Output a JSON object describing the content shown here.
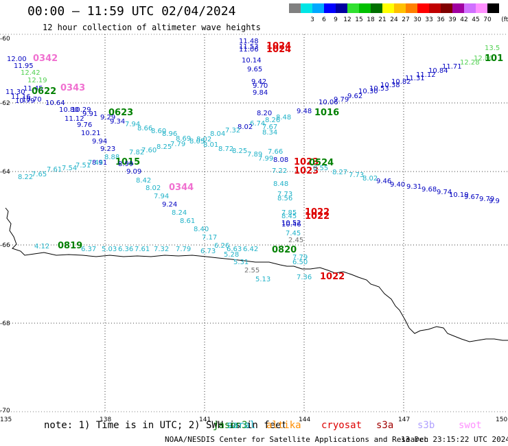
{
  "title": "00:00 – 11:59 UTC 02/04/2024",
  "subtitle": "12 hour collection of altimeter wave heights",
  "legend": {
    "unit": "(ft)",
    "bins": [
      {
        "color": "#808080",
        "label": ""
      },
      {
        "color": "#00e5e5",
        "label": "3"
      },
      {
        "color": "#00a8ff",
        "label": "6"
      },
      {
        "color": "#0000ff",
        "label": "9"
      },
      {
        "color": "#0000a0",
        "label": "12"
      },
      {
        "color": "#30e030",
        "label": "15"
      },
      {
        "color": "#00c000",
        "label": "18"
      },
      {
        "color": "#007000",
        "label": "21"
      },
      {
        "color": "#ffff00",
        "label": "24"
      },
      {
        "color": "#ffc000",
        "label": "27"
      },
      {
        "color": "#ff8000",
        "label": "30"
      },
      {
        "color": "#ff0000",
        "label": "33"
      },
      {
        "color": "#c00000",
        "label": "36"
      },
      {
        "color": "#800000",
        "label": "39"
      },
      {
        "color": "#a000a0",
        "label": "42"
      },
      {
        "color": "#d070ff",
        "label": "45"
      },
      {
        "color": "#ff90ff",
        "label": "70"
      },
      {
        "color": "#000000",
        "label": ""
      }
    ]
  },
  "axes": {
    "lat_labels": [
      "-60",
      "-62",
      "-64",
      "-66",
      "-68",
      "-70"
    ],
    "lon_labels": [
      "135",
      "138",
      "141",
      "144",
      "147",
      "150"
    ]
  },
  "colors": {
    "cyan": "#20b2c8",
    "blue": "#0000c0",
    "green": "#008000",
    "lightgreen": "#50d050",
    "red": "#dd0000",
    "pink": "#f070d0",
    "gray": "#707070",
    "coast": "#000000",
    "grid": "#000000"
  },
  "observations": [
    {
      "t": "12.00",
      "c": "blue"
    },
    {
      "t": "0342",
      "c": "pink"
    },
    {
      "t": "11.95",
      "c": "blue"
    },
    {
      "t": "12.42",
      "c": "lightgreen"
    },
    {
      "t": "12.19",
      "c": "lightgreen"
    },
    {
      "t": "11.45",
      "c": "blue"
    },
    {
      "t": "0343",
      "c": "pink"
    },
    {
      "t": "11.30",
      "c": "blue"
    },
    {
      "t": "0622",
      "c": "green"
    },
    {
      "t": "11.16",
      "c": "blue"
    },
    {
      "t": "10.70",
      "c": "blue"
    },
    {
      "t": "10.79",
      "c": "blue"
    },
    {
      "t": "10.64",
      "c": "blue"
    },
    {
      "t": "10.80",
      "c": "blue"
    },
    {
      "t": "10.29",
      "c": "blue"
    },
    {
      "t": "9.91",
      "c": "blue"
    },
    {
      "t": "0623",
      "c": "green"
    },
    {
      "t": "9.29",
      "c": "blue"
    },
    {
      "t": "11.12",
      "c": "blue"
    },
    {
      "t": "9.34",
      "c": "blue"
    },
    {
      "t": "9.76",
      "c": "blue"
    },
    {
      "t": "7.94",
      "c": "cyan"
    },
    {
      "t": "8.66",
      "c": "cyan"
    },
    {
      "t": "10.21",
      "c": "blue"
    },
    {
      "t": "8.60",
      "c": "cyan"
    },
    {
      "t": "8.96",
      "c": "cyan"
    },
    {
      "t": "9.94",
      "c": "blue"
    },
    {
      "t": "8.69",
      "c": "cyan"
    },
    {
      "t": "8.05",
      "c": "cyan"
    },
    {
      "t": "8.02",
      "c": "cyan"
    },
    {
      "t": "8.25",
      "c": "cyan"
    },
    {
      "t": "7.79",
      "c": "cyan"
    },
    {
      "t": "8.01",
      "c": "cyan"
    },
    {
      "t": "9.23",
      "c": "blue"
    },
    {
      "t": "7.82",
      "c": "cyan"
    },
    {
      "t": "7.60",
      "c": "cyan"
    },
    {
      "t": "8.04",
      "c": "cyan"
    },
    {
      "t": "8.91",
      "c": "blue"
    },
    {
      "t": "8.88",
      "c": "cyan"
    },
    {
      "t": "7.44",
      "c": "cyan"
    },
    {
      "t": "7.51",
      "c": "cyan"
    },
    {
      "t": "7.54",
      "c": "cyan"
    },
    {
      "t": "7.61",
      "c": "cyan"
    },
    {
      "t": "7.65",
      "c": "cyan"
    },
    {
      "t": "8.22",
      "c": "cyan"
    },
    {
      "t": "1015",
      "c": "green"
    },
    {
      "t": "8.99",
      "c": "blue"
    },
    {
      "t": "9.09",
      "c": "blue"
    },
    {
      "t": "8.42",
      "c": "cyan"
    },
    {
      "t": "8.02",
      "c": "cyan"
    },
    {
      "t": "0344",
      "c": "pink"
    },
    {
      "t": "7.94",
      "c": "cyan"
    },
    {
      "t": "9.24",
      "c": "blue"
    },
    {
      "t": "8.24",
      "c": "cyan"
    },
    {
      "t": "8.61",
      "c": "cyan"
    },
    {
      "t": "8.40",
      "c": "cyan"
    },
    {
      "t": "7.17",
      "c": "cyan"
    },
    {
      "t": "6.26",
      "c": "cyan"
    },
    {
      "t": "6.73",
      "c": "cyan"
    },
    {
      "t": "7.79",
      "c": "cyan"
    },
    {
      "t": "5.03",
      "c": "cyan"
    },
    {
      "t": "6.36",
      "c": "cyan"
    },
    {
      "t": "7.61",
      "c": "cyan"
    },
    {
      "t": "7.32",
      "c": "cyan"
    },
    {
      "t": "5.28",
      "c": "cyan"
    },
    {
      "t": "6.63",
      "c": "cyan"
    },
    {
      "t": "6.42",
      "c": "cyan"
    },
    {
      "t": "5.31",
      "c": "cyan"
    },
    {
      "t": "2.55",
      "c": "gray"
    },
    {
      "t": "5.13",
      "c": "cyan"
    },
    {
      "t": "4.12",
      "c": "cyan"
    },
    {
      "t": "0819",
      "c": "green"
    },
    {
      "t": "6.37",
      "c": "cyan"
    },
    {
      "t": "11.48",
      "c": "blue"
    },
    {
      "t": "1024",
      "c": "red"
    },
    {
      "t": "11.53",
      "c": "blue"
    },
    {
      "t": "11.06",
      "c": "blue"
    },
    {
      "t": "1024",
      "c": "red"
    },
    {
      "t": "10.14",
      "c": "blue"
    },
    {
      "t": "9.65",
      "c": "blue"
    },
    {
      "t": "9.42",
      "c": "blue"
    },
    {
      "t": "9.70",
      "c": "blue"
    },
    {
      "t": "9.84",
      "c": "blue"
    },
    {
      "t": "8.20",
      "c": "blue"
    },
    {
      "t": "8.26",
      "c": "cyan"
    },
    {
      "t": "8.48",
      "c": "cyan"
    },
    {
      "t": "9.48",
      "c": "blue"
    },
    {
      "t": "1016",
      "c": "green"
    },
    {
      "t": "6.74",
      "c": "cyan"
    },
    {
      "t": "7.67",
      "c": "cyan"
    },
    {
      "t": "8.02",
      "c": "blue"
    },
    {
      "t": "7.32",
      "c": "cyan"
    },
    {
      "t": "8.34",
      "c": "cyan"
    },
    {
      "t": "8.72",
      "c": "cyan"
    },
    {
      "t": "8.25",
      "c": "cyan"
    },
    {
      "t": "7.89",
      "c": "cyan"
    },
    {
      "t": "7.66",
      "c": "cyan"
    },
    {
      "t": "7.99",
      "c": "cyan"
    },
    {
      "t": "8.08",
      "c": "blue"
    },
    {
      "t": "1023",
      "c": "red"
    },
    {
      "t": "0524",
      "c": "green"
    },
    {
      "t": "7.22",
      "c": "cyan"
    },
    {
      "t": "1023",
      "c": "red"
    },
    {
      "t": "8.55",
      "c": "cyan"
    },
    {
      "t": "8.27",
      "c": "cyan"
    },
    {
      "t": "7.73",
      "c": "cyan"
    },
    {
      "t": "8.02",
      "c": "cyan"
    },
    {
      "t": "8.48",
      "c": "cyan"
    },
    {
      "t": "7.73",
      "c": "cyan"
    },
    {
      "t": "8.56",
      "c": "cyan"
    },
    {
      "t": "7.85",
      "c": "cyan"
    },
    {
      "t": "1022",
      "c": "red"
    },
    {
      "t": "8.45",
      "c": "cyan"
    },
    {
      "t": "1022",
      "c": "red"
    },
    {
      "t": "10.52",
      "c": "blue"
    },
    {
      "t": "10.46",
      "c": "blue"
    },
    {
      "t": "7.45",
      "c": "cyan"
    },
    {
      "t": "2.45",
      "c": "gray"
    },
    {
      "t": "0820",
      "c": "green"
    },
    {
      "t": "7.79",
      "c": "cyan"
    },
    {
      "t": "6.50",
      "c": "cyan"
    },
    {
      "t": "7.36",
      "c": "cyan"
    },
    {
      "t": "1022",
      "c": "red"
    },
    {
      "t": "10.06",
      "c": "blue"
    },
    {
      "t": "9.79",
      "c": "blue"
    },
    {
      "t": "9.62",
      "c": "blue"
    },
    {
      "t": "10.30",
      "c": "blue"
    },
    {
      "t": "10.53",
      "c": "blue"
    },
    {
      "t": "10.38",
      "c": "blue"
    },
    {
      "t": "10.82",
      "c": "blue"
    },
    {
      "t": "11.31",
      "c": "blue"
    },
    {
      "t": "11.12",
      "c": "blue"
    },
    {
      "t": "10.84",
      "c": "blue"
    },
    {
      "t": "11.71",
      "c": "blue"
    },
    {
      "t": "12.28",
      "c": "lightgreen"
    },
    {
      "t": "12.80",
      "c": "lightgreen"
    },
    {
      "t": "13.5",
      "c": "lightgreen"
    },
    {
      "t": "101",
      "c": "green"
    },
    {
      "t": "9.46",
      "c": "blue"
    },
    {
      "t": "9.40",
      "c": "blue"
    },
    {
      "t": "9.31",
      "c": "blue"
    },
    {
      "t": "9.68",
      "c": "blue"
    },
    {
      "t": "9.74",
      "c": "blue"
    },
    {
      "t": "10.19",
      "c": "blue"
    },
    {
      "t": "9.67",
      "c": "blue"
    },
    {
      "t": "9.79",
      "c": "blue"
    },
    {
      "t": "9.9",
      "c": "blue"
    }
  ],
  "note": "note: 1) Time is in UTC; 2) SWH is in feet",
  "satellites": [
    {
      "name": "jason3",
      "color": "#008000"
    },
    {
      "name": "saral",
      "color": "#20b2c8"
    },
    {
      "name": "altika",
      "color": "#ff8c00"
    },
    {
      "name": "cryosat",
      "color": "#dd0000"
    },
    {
      "name": "s3a",
      "color": "#a00000"
    },
    {
      "name": "s3b",
      "color": "#b0a0ff"
    },
    {
      "name": "swot",
      "color": "#ff90ff"
    }
  ],
  "footer": "NOAA/NESDIS Center for Satellite Applications and Research",
  "timestamp": "13 Dec 23:15:22 UTC 2024"
}
